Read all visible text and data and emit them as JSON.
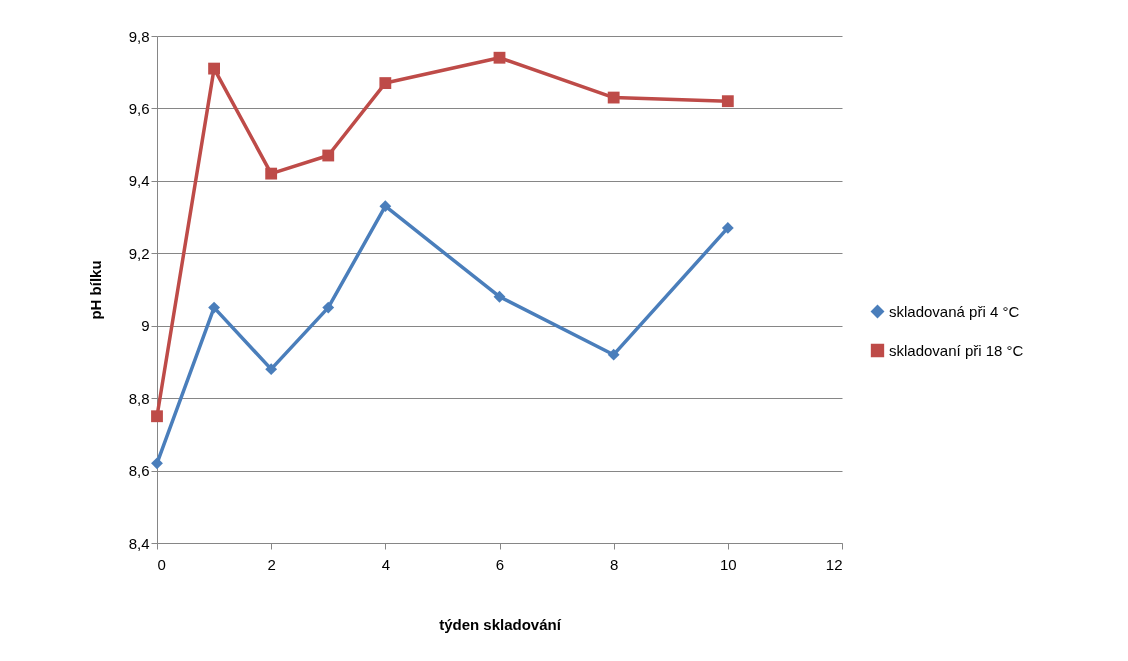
{
  "chart_data": {
    "type": "line",
    "xlabel": "týden skladování",
    "ylabel": "pH bílku",
    "x": [
      0,
      1,
      2,
      3,
      4,
      6,
      8,
      10
    ],
    "series": [
      {
        "name": "skladovaná při 4 °C",
        "color": "#4a7ebb",
        "marker": "diamond",
        "values": [
          8.62,
          9.05,
          8.88,
          9.05,
          9.33,
          9.08,
          8.92,
          9.27
        ]
      },
      {
        "name": "skladovaní při 18 °C",
        "color": "#be4b48",
        "marker": "square",
        "values": [
          8.75,
          9.71,
          9.42,
          9.47,
          9.67,
          9.74,
          9.63,
          9.62
        ]
      }
    ],
    "xlim": [
      0,
      12
    ],
    "xticks": [
      0,
      2,
      4,
      6,
      8,
      10,
      12
    ],
    "ylim": [
      8.4,
      9.8
    ],
    "yticks": [
      {
        "value": 8.4,
        "label": "8,4"
      },
      {
        "value": 8.6,
        "label": "8,6"
      },
      {
        "value": 8.8,
        "label": "8,8"
      },
      {
        "value": 9,
        "label": "9"
      },
      {
        "value": 9.2,
        "label": "9,2"
      },
      {
        "value": 9.4,
        "label": "9,4"
      },
      {
        "value": 9.6,
        "label": "9,6"
      },
      {
        "value": 9.8,
        "label": "9,8"
      }
    ],
    "grid": "y",
    "legend": "right",
    "line_style": "solid"
  }
}
